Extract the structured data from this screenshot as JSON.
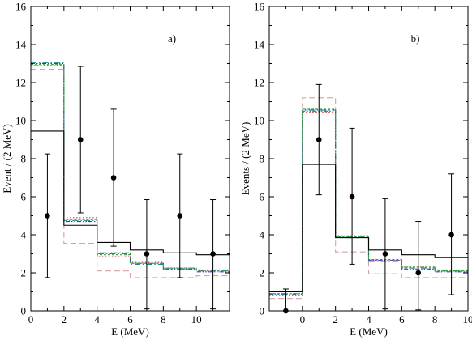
{
  "chart_data": [
    {
      "type": "line",
      "panel_label": "a)",
      "xlabel": "E (MeV)",
      "ylabel": "Event / (2 MeV)",
      "xlim": [
        0,
        12
      ],
      "ylim": [
        0,
        16
      ],
      "xticks": [
        0,
        2,
        4,
        6,
        8,
        10
      ],
      "yticks": [
        0,
        2,
        4,
        6,
        8,
        10,
        12,
        14,
        16
      ],
      "grid": false,
      "data_points": {
        "x": [
          1,
          3,
          5,
          7,
          9,
          11
        ],
        "y": [
          5,
          9,
          7,
          3,
          5,
          3
        ],
        "y_low": [
          1.75,
          5.15,
          3.4,
          0.1,
          1.75,
          0.1
        ],
        "y_high": [
          8.25,
          12.85,
          10.6,
          5.85,
          8.25,
          5.85
        ]
      },
      "step_series": [
        {
          "style": "solid",
          "color": "#000000",
          "edges": [
            0,
            2,
            4,
            6,
            8,
            10,
            12
          ],
          "values": [
            9.45,
            4.5,
            3.6,
            3.2,
            3.05,
            2.95
          ]
        },
        {
          "style": "dashed",
          "color": "#d8a0a8",
          "edges": [
            0,
            2,
            4,
            6,
            8,
            10,
            12
          ],
          "values": [
            12.7,
            3.55,
            2.1,
            1.75,
            1.75,
            1.85
          ]
        },
        {
          "style": "dotted",
          "color": "#d04040",
          "edges": [
            0,
            2,
            4,
            6,
            8,
            10,
            12
          ],
          "values": [
            12.9,
            4.9,
            2.85,
            2.55,
            2.2,
            2.1
          ]
        },
        {
          "style": "dashdot",
          "color": "#1a8a8a",
          "edges": [
            0,
            2,
            4,
            6,
            8,
            10,
            12
          ],
          "values": [
            13.05,
            4.75,
            3.0,
            2.45,
            2.25,
            2.1
          ]
        },
        {
          "style": "dashdot2",
          "color": "#3040c0",
          "edges": [
            0,
            2,
            4,
            6,
            8,
            10,
            12
          ],
          "values": [
            13.0,
            4.7,
            3.05,
            2.5,
            2.2,
            2.05
          ]
        },
        {
          "style": "dense",
          "color": "#30a030",
          "edges": [
            0,
            2,
            4,
            6,
            8,
            10,
            12
          ],
          "values": [
            12.95,
            4.8,
            2.95,
            2.5,
            2.25,
            2.15
          ]
        }
      ]
    },
    {
      "type": "line",
      "panel_label": "b)",
      "xlabel": "E (MeV)",
      "ylabel": "Events / (2 MeV)",
      "xlim": [
        -2,
        10
      ],
      "ylim": [
        0,
        16
      ],
      "xticks": [
        0,
        2,
        4,
        6,
        8,
        10
      ],
      "yticks": [
        0,
        2,
        4,
        6,
        8,
        10,
        12,
        14,
        16
      ],
      "grid": false,
      "data_points": {
        "x": [
          -1,
          1,
          3,
          5,
          7,
          9
        ],
        "y": [
          0,
          9,
          6,
          3,
          2,
          4
        ],
        "y_low": [
          0,
          6.1,
          2.45,
          0.1,
          0.05,
          0.85
        ],
        "y_high": [
          1.15,
          11.9,
          9.6,
          5.9,
          4.7,
          7.2
        ]
      },
      "step_series": [
        {
          "style": "solid",
          "color": "#000000",
          "edges": [
            -2,
            0,
            2,
            4,
            6,
            8,
            10
          ],
          "values": [
            1.0,
            7.7,
            3.85,
            3.2,
            2.95,
            2.8
          ]
        },
        {
          "style": "dashed",
          "color": "#d8a0a8",
          "edges": [
            -2,
            0,
            2,
            4,
            6,
            8,
            10
          ],
          "values": [
            0.65,
            11.2,
            3.1,
            1.95,
            1.75,
            1.75
          ]
        },
        {
          "style": "dotted",
          "color": "#d04040",
          "edges": [
            -2,
            0,
            2,
            4,
            6,
            8,
            10
          ],
          "values": [
            0.8,
            10.45,
            3.95,
            2.65,
            2.3,
            2.15
          ]
        },
        {
          "style": "dashdot",
          "color": "#1a8a8a",
          "edges": [
            -2,
            0,
            2,
            4,
            6,
            8,
            10
          ],
          "values": [
            0.9,
            10.55,
            3.9,
            2.6,
            2.25,
            2.1
          ]
        },
        {
          "style": "dashdot2",
          "color": "#3040c0",
          "edges": [
            -2,
            0,
            2,
            4,
            6,
            8,
            10
          ],
          "values": [
            0.85,
            10.5,
            3.85,
            2.65,
            2.2,
            2.05
          ]
        },
        {
          "style": "dense",
          "color": "#30a030",
          "edges": [
            -2,
            0,
            2,
            4,
            6,
            8,
            10
          ],
          "values": [
            0.9,
            10.6,
            3.9,
            2.7,
            2.3,
            2.1
          ]
        }
      ]
    }
  ]
}
